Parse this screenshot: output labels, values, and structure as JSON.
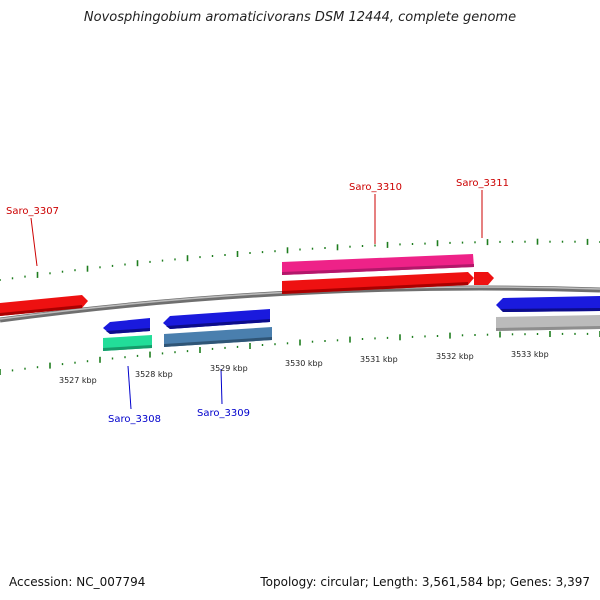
{
  "title": "Novosphingobium aromaticivorans DSM 12444, complete genome",
  "footer": {
    "accession": "Accession: NC_007794",
    "summary": "Topology: circular; Length: 3,561,584 bp; Genes: 3,397"
  },
  "axis_labels": [
    "3527 kbp",
    "3528 kbp",
    "3529 kbp",
    "3530 kbp",
    "3531 kbp",
    "3532 kbp",
    "3533 kbp"
  ],
  "gene_labels": [
    {
      "text": "Saro_3307",
      "color": "#cc0000"
    },
    {
      "text": "Saro_3310",
      "color": "#cc0000"
    },
    {
      "text": "Saro_3311",
      "color": "#cc0000"
    },
    {
      "text": "Saro_3308",
      "color": "#0000cc"
    },
    {
      "text": "Saro_3309",
      "color": "#0000cc"
    }
  ],
  "colors": {
    "forward_cds": "#ee1111",
    "forward_gene": "#ee2288",
    "reverse_cds": "#1a1add",
    "reverse_gene_green": "#22dd99",
    "reverse_gene_steel": "#4a7fae",
    "reverse_gene_grey": "#bbbbbb",
    "backbone": "#888888",
    "tick": "#1e7d1e"
  }
}
